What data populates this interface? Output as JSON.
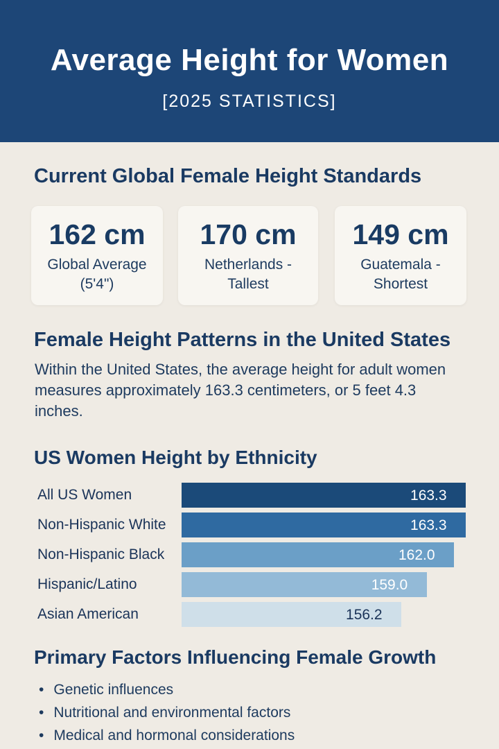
{
  "header": {
    "title": "Average Height for Women",
    "subtitle": "[2025 STATISTICS]"
  },
  "global": {
    "heading": "Current Global Female Height Standards",
    "cards": [
      {
        "value": "162 cm",
        "label_line1": "Global Average",
        "label_line2": "(5'4\")"
      },
      {
        "value": "170 cm",
        "label_line1": "Netherlands -",
        "label_line2": "Tallest"
      },
      {
        "value": "149 cm",
        "label_line1": "Guatemala -",
        "label_line2": "Shortest"
      }
    ]
  },
  "us": {
    "heading": "Female Height Patterns in the United States",
    "text": "Within the United States, the average height for adult women measures approximately 163.3 centimeters, or 5 feet 4.3 inches."
  },
  "chart_data": {
    "type": "bar",
    "orientation": "horizontal",
    "title": "US Women Height by Ethnicity",
    "categories": [
      "All US Women",
      "Non-Hispanic White",
      "Non-Hispanic Black",
      "Hispanic/Latino",
      "Asian American"
    ],
    "values": [
      163.3,
      163.3,
      162.0,
      159.0,
      156.2
    ],
    "value_labels": [
      "163.3",
      "163.3",
      "162.0",
      "159.0",
      "156.2"
    ],
    "colors": [
      "#1b4a79",
      "#2f6aa1",
      "#6b9fc7",
      "#93bad7",
      "#cfdfe9"
    ],
    "label_colors": [
      "#ffffff",
      "#ffffff",
      "#ffffff",
      "#ffffff",
      "#1a3358"
    ],
    "grid": false
  },
  "factors": {
    "heading": "Primary Factors Influencing Female Growth",
    "items": [
      "Genetic influences",
      "Nutritional and environmental factors",
      "Medical and hormonal considerations"
    ]
  }
}
